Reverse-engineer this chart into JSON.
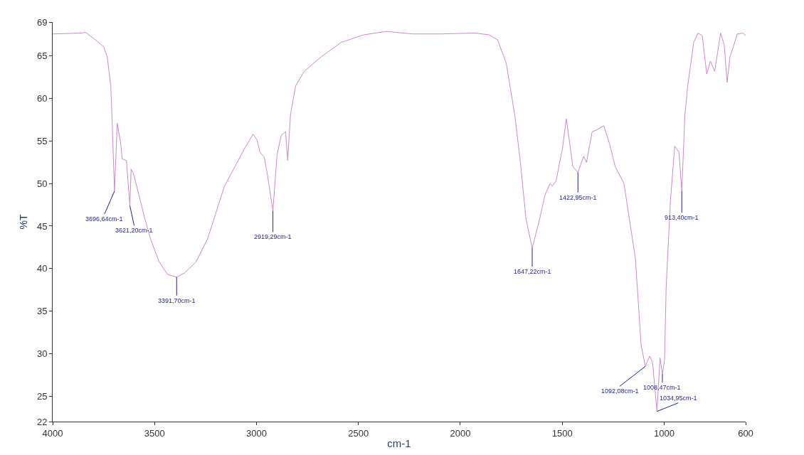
{
  "chart_data": {
    "type": "line",
    "xlabel": "cm-1",
    "ylabel": "%T",
    "xlim": [
      4000,
      600
    ],
    "xticks": [
      4000,
      3500,
      3000,
      2500,
      2000,
      1500,
      1000,
      600
    ],
    "ylim": [
      22,
      69
    ],
    "yticks": [
      22,
      25,
      30,
      35,
      40,
      45,
      50,
      55,
      60,
      65,
      69
    ],
    "grid": false,
    "marker": "none",
    "line_style": "solid",
    "x": [
      4000,
      3855,
      3840,
      3800,
      3750,
      3732,
      3715,
      3708,
      3696.64,
      3683,
      3666,
      3659,
      3638,
      3621.2,
      3615,
      3604,
      3576,
      3548,
      3520,
      3478,
      3436,
      3391.7,
      3352,
      3296,
      3240,
      3157,
      3101,
      3059,
      3017,
      2997,
      2983,
      2962,
      2948,
      2919.29,
      2899,
      2878,
      2857,
      2847,
      2833,
      2808,
      2766,
      2683,
      2585,
      2473,
      2361,
      2235,
      2096,
      1929,
      1859,
      1817,
      1775,
      1733,
      1706,
      1678,
      1647.22,
      1610,
      1585,
      1560,
      1549,
      1530,
      1511,
      1499,
      1480,
      1467,
      1448,
      1422.95,
      1395,
      1381,
      1353,
      1331,
      1296,
      1268,
      1240,
      1197,
      1141,
      1113,
      1092.08,
      1071,
      1057,
      1034.95,
      1020,
      1008.47,
      998,
      990,
      969,
      948,
      927,
      913.4,
      898,
      884,
      855,
      834,
      813,
      791,
      773,
      752,
      723,
      705,
      691,
      677,
      663,
      641,
      613,
      600
    ],
    "series": [
      {
        "color": "#cc88cc",
        "values": [
          67.6,
          67.7,
          67.8,
          67.1,
          66.1,
          64.9,
          61.5,
          57.4,
          49.1,
          57.1,
          54.7,
          52.9,
          52.7,
          47.4,
          51.7,
          51.2,
          48.6,
          45.9,
          43.5,
          40.8,
          39.3,
          39.0,
          39.5,
          40.8,
          43.5,
          49.7,
          52.2,
          54.1,
          55.8,
          55.1,
          53.7,
          53.1,
          51.3,
          46.8,
          53.4,
          55.7,
          56.1,
          52.7,
          58.1,
          61.5,
          63.2,
          64.9,
          66.6,
          67.5,
          67.9,
          67.6,
          67.6,
          67.7,
          67.5,
          66.9,
          64.2,
          58.1,
          52.7,
          45.9,
          42.4,
          45.9,
          48.6,
          50.0,
          49.7,
          50.3,
          52.7,
          54.1,
          57.6,
          55.4,
          52.0,
          51.3,
          53.2,
          52.5,
          56.1,
          56.3,
          56.8,
          54.7,
          52.0,
          50.0,
          41.2,
          31.0,
          28.5,
          29.7,
          29.0,
          23.2,
          29.5,
          27.6,
          29.2,
          37.8,
          48.0,
          54.4,
          53.7,
          49.1,
          58.1,
          61.5,
          66.6,
          67.7,
          67.4,
          62.9,
          64.4,
          63.2,
          67.7,
          66.3,
          61.9,
          64.9,
          65.9,
          67.6,
          67.7,
          67.4
        ]
      }
    ],
    "annotations": [
      {
        "text": "3696,64cm-1",
        "x": 3696.64,
        "y": 49.1
      },
      {
        "text": "3621,20cm-1",
        "x": 3621.2,
        "y": 47.4
      },
      {
        "text": "3391,70cm-1",
        "x": 3391.7,
        "y": 39.0
      },
      {
        "text": "2919,29cm-1",
        "x": 2919.29,
        "y": 46.8
      },
      {
        "text": "1647,22cm-1",
        "x": 1647.22,
        "y": 42.4
      },
      {
        "text": "1422,95cm-1",
        "x": 1422.95,
        "y": 51.3
      },
      {
        "text": "913,40cm-1",
        "x": 913.4,
        "y": 49.1
      },
      {
        "text": "1008,47cm-1",
        "x": 1008.47,
        "y": 27.6
      },
      {
        "text": "1092,08cm-1",
        "x": 1092.08,
        "y": 28.5
      },
      {
        "text": "1034,95cm-1",
        "x": 1034.95,
        "y": 23.2
      }
    ]
  }
}
